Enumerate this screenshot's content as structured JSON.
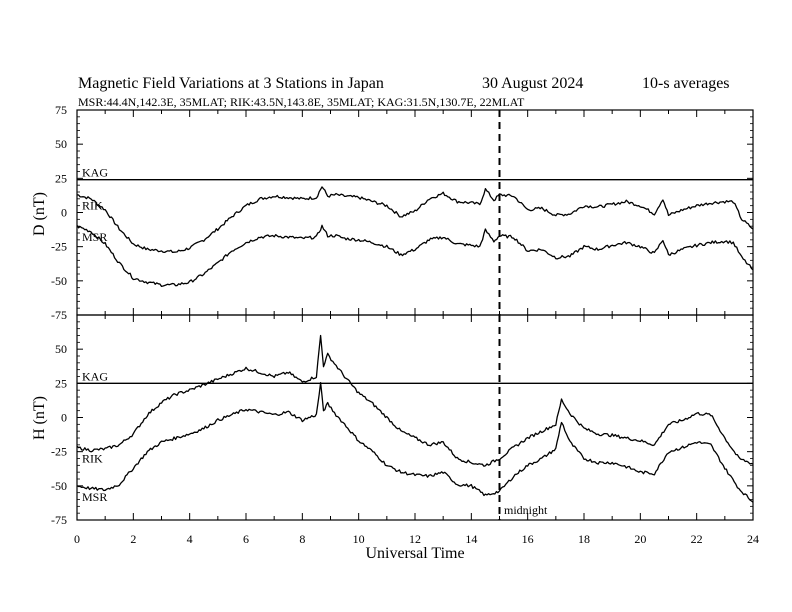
{
  "header": {
    "title": "Magnetic Field Variations at 3 Stations in Japan",
    "date": "30  August  2024",
    "averaging": "10-s averages",
    "stations": "MSR:44.4N,142.3E, 35MLAT;  RIK:43.5N,143.8E, 35MLAT;  KAG:31.5N,130.7E, 22MLAT"
  },
  "annotations": {
    "midnight_label": "midnight",
    "midnight_x": 15
  },
  "chart_data": [
    {
      "type": "line",
      "panel": "D",
      "ylabel": "D (nT)",
      "xlabel": "",
      "xlim": [
        0,
        24
      ],
      "ylim": [
        -75,
        75
      ],
      "yticks": [
        75,
        50,
        25,
        0,
        -25,
        -50,
        -75
      ],
      "xticks": [
        0,
        2,
        4,
        6,
        8,
        10,
        12,
        14,
        16,
        18,
        20,
        22,
        24
      ],
      "series": [
        {
          "name": "KAG",
          "x": [
            0,
            24
          ],
          "values": [
            24,
            24
          ]
        },
        {
          "name": "RIK",
          "x": [
            0,
            0.5,
            1,
            1.5,
            2,
            2.5,
            3,
            3.5,
            4,
            4.5,
            5,
            5.5,
            6,
            6.5,
            7,
            7.5,
            8,
            8.5,
            8.7,
            8.9,
            9.2,
            9.5,
            10,
            10.5,
            11,
            11.5,
            12,
            12.5,
            13,
            13.5,
            14,
            14.3,
            14.5,
            14.8,
            15,
            15.5,
            16,
            16.5,
            17,
            17.5,
            18,
            18.5,
            19,
            19.5,
            20,
            20.5,
            20.8,
            21,
            21.5,
            22,
            22.5,
            23,
            23.3,
            23.6,
            24
          ],
          "values": [
            13,
            10,
            2,
            -12,
            -23,
            -27,
            -28,
            -29,
            -26,
            -20,
            -12,
            -3,
            5,
            10,
            12,
            11,
            10,
            11,
            19,
            12,
            13,
            12,
            11,
            8,
            5,
            -3,
            1,
            10,
            14,
            8,
            7,
            6,
            17,
            9,
            13,
            12,
            2,
            3,
            -2,
            -1,
            5,
            4,
            6,
            8,
            5,
            -1,
            10,
            -2,
            2,
            5,
            7,
            8,
            8,
            -5,
            -12
          ]
        },
        {
          "name": "MSR",
          "x": [
            0,
            0.5,
            1,
            1.5,
            2,
            2.5,
            3,
            3.5,
            4,
            4.5,
            5,
            5.5,
            6,
            6.5,
            7,
            7.5,
            8,
            8.5,
            8.7,
            8.9,
            9.2,
            9.5,
            10,
            10.5,
            11,
            11.5,
            12,
            12.5,
            13,
            13.5,
            14,
            14.3,
            14.5,
            14.8,
            15,
            15.5,
            16,
            16.5,
            17,
            17.5,
            18,
            18.5,
            19,
            19.5,
            20,
            20.5,
            20.8,
            21,
            21.5,
            22,
            22.5,
            23,
            23.3,
            23.6,
            24
          ],
          "values": [
            -10,
            -14,
            -23,
            -37,
            -48,
            -51,
            -53,
            -53,
            -51,
            -45,
            -37,
            -28,
            -22,
            -18,
            -17,
            -18,
            -19,
            -18,
            -10,
            -17,
            -17,
            -19,
            -20,
            -22,
            -25,
            -31,
            -27,
            -20,
            -18,
            -23,
            -24,
            -25,
            -13,
            -21,
            -17,
            -18,
            -28,
            -27,
            -33,
            -32,
            -25,
            -27,
            -24,
            -22,
            -25,
            -30,
            -20,
            -31,
            -27,
            -24,
            -22,
            -21,
            -22,
            -33,
            -42
          ]
        }
      ]
    },
    {
      "type": "line",
      "panel": "H",
      "ylabel": "H (nT)",
      "xlabel": "Universal Time",
      "xlim": [
        0,
        24
      ],
      "ylim": [
        -75,
        75
      ],
      "yticks": [
        50,
        25,
        0,
        -25,
        -50,
        -75
      ],
      "xticks": [
        0,
        2,
        4,
        6,
        8,
        10,
        12,
        14,
        16,
        18,
        20,
        22,
        24
      ],
      "series": [
        {
          "name": "KAG",
          "x": [
            0,
            24
          ],
          "values": [
            25,
            25
          ]
        },
        {
          "name": "RIK",
          "x": [
            0,
            0.5,
            1,
            1.5,
            2,
            2.5,
            3,
            3.5,
            4,
            4.5,
            5,
            5.5,
            6,
            6.5,
            7,
            7.5,
            8,
            8.5,
            8.65,
            8.75,
            8.9,
            9.2,
            9.5,
            10,
            10.5,
            11,
            11.5,
            12,
            12.5,
            13,
            13.5,
            14,
            14.5,
            15,
            15.5,
            16,
            16.5,
            17,
            17.2,
            17.5,
            18,
            18.5,
            19,
            19.5,
            20,
            20.5,
            21,
            21.5,
            22,
            22.5,
            23,
            23.5,
            24
          ],
          "values": [
            -22,
            -24,
            -23,
            -20,
            -12,
            2,
            11,
            17,
            20,
            24,
            28,
            32,
            36,
            33,
            30,
            33,
            26,
            30,
            60,
            38,
            46,
            38,
            30,
            18,
            10,
            0,
            -10,
            -15,
            -20,
            -18,
            -30,
            -33,
            -35,
            -30,
            -22,
            -15,
            -10,
            -5,
            13,
            3,
            -8,
            -12,
            -13,
            -15,
            -17,
            -20,
            -5,
            -2,
            3,
            2,
            -15,
            -30,
            -34
          ]
        },
        {
          "name": "MSR",
          "x": [
            0,
            0.5,
            1,
            1.5,
            2,
            2.5,
            3,
            3.5,
            4,
            4.5,
            5,
            5.5,
            6,
            6.5,
            7,
            7.5,
            8,
            8.5,
            8.65,
            8.75,
            8.9,
            9.2,
            9.5,
            10,
            10.5,
            11,
            11.5,
            12,
            12.5,
            13,
            13.5,
            14,
            14.5,
            15,
            15.5,
            16,
            16.5,
            17,
            17.2,
            17.5,
            18,
            18.5,
            19,
            19.5,
            20,
            20.5,
            21,
            21.5,
            22,
            22.5,
            23,
            23.5,
            24
          ],
          "values": [
            -50,
            -52,
            -53,
            -49,
            -37,
            -25,
            -18,
            -15,
            -12,
            -8,
            -2,
            2,
            6,
            4,
            2,
            4,
            -2,
            2,
            25,
            5,
            10,
            2,
            -5,
            -17,
            -25,
            -35,
            -40,
            -42,
            -43,
            -40,
            -49,
            -50,
            -57,
            -54,
            -43,
            -35,
            -30,
            -23,
            -3,
            -18,
            -30,
            -33,
            -33,
            -36,
            -40,
            -41,
            -25,
            -22,
            -18,
            -20,
            -37,
            -52,
            -62
          ]
        }
      ]
    }
  ]
}
